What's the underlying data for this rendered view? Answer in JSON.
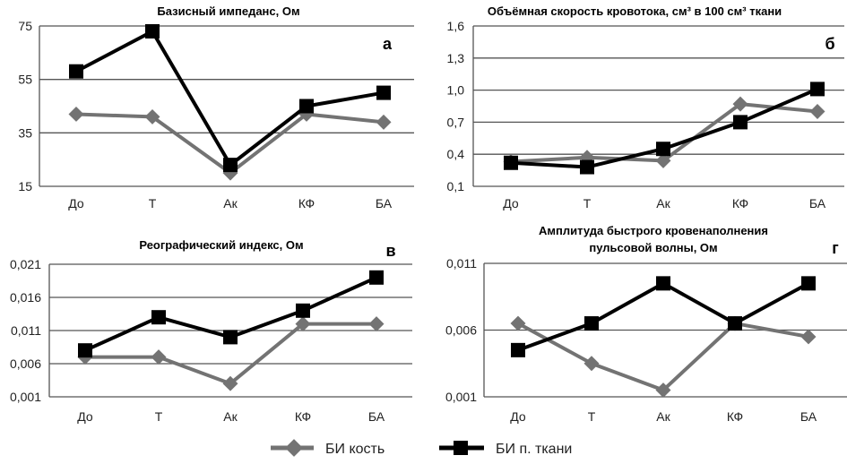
{
  "legend": {
    "series": [
      {
        "name": "БИ кость",
        "color": "#737373",
        "marker": "diamond"
      },
      {
        "name": "БИ п. ткани",
        "color": "#000000",
        "marker": "square"
      }
    ],
    "placement": "bottom"
  },
  "chart_data": [
    {
      "type": "line",
      "panel": "а",
      "title": "Базисный импеданс, Ом",
      "categories": [
        "До",
        "Т",
        "Ак",
        "КФ",
        "БА"
      ],
      "yticks": [
        "15",
        "35",
        "55",
        "75"
      ],
      "ylim": [
        15,
        75
      ],
      "grid": true,
      "series": [
        {
          "name": "БИ кость",
          "values": [
            42,
            41,
            20,
            42,
            39
          ]
        },
        {
          "name": "БИ п. ткани",
          "values": [
            58,
            73,
            23,
            45,
            50
          ]
        }
      ]
    },
    {
      "type": "line",
      "panel": "б",
      "title": "Объёмная скорость кровотока, см³ в 100 см³ ткани",
      "categories": [
        "До",
        "Т",
        "Ак",
        "КФ",
        "БА"
      ],
      "yticks": [
        "0,1",
        "0,4",
        "0,7",
        "1,0",
        "1,3",
        "1,6"
      ],
      "ylim": [
        0.1,
        1.6
      ],
      "grid": true,
      "series": [
        {
          "name": "БИ кость",
          "values": [
            0.33,
            0.37,
            0.34,
            0.87,
            0.8
          ]
        },
        {
          "name": "БИ п. ткани",
          "values": [
            0.32,
            0.28,
            0.45,
            0.7,
            1.01
          ]
        }
      ]
    },
    {
      "type": "line",
      "panel": "в",
      "title": "Реографический индекс, Ом",
      "categories": [
        "До",
        "Т",
        "Ак",
        "КФ",
        "БА"
      ],
      "yticks": [
        "0,001",
        "0,006",
        "0,011",
        "0,016",
        "0,021"
      ],
      "ylim": [
        0.001,
        0.021
      ],
      "grid": true,
      "series": [
        {
          "name": "БИ кость",
          "values": [
            0.007,
            0.007,
            0.003,
            0.012,
            0.012
          ]
        },
        {
          "name": "БИ п. ткани",
          "values": [
            0.008,
            0.013,
            0.01,
            0.014,
            0.019
          ]
        }
      ]
    },
    {
      "type": "line",
      "panel": "г",
      "title": [
        "Амплитуда быстрого кровенаполнения",
        "пульсовой волны, Ом"
      ],
      "categories": [
        "До",
        "Т",
        "Ак",
        "КФ",
        "БА"
      ],
      "yticks": [
        "0,001",
        "0,006",
        "0,011"
      ],
      "ylim": [
        0.001,
        0.011
      ],
      "grid": true,
      "series": [
        {
          "name": "БИ кость",
          "values": [
            0.0065,
            0.0035,
            0.0015,
            0.0065,
            0.0055
          ]
        },
        {
          "name": "БИ п. ткани",
          "values": [
            0.0045,
            0.0065,
            0.0095,
            0.0065,
            0.0095
          ]
        }
      ]
    }
  ]
}
